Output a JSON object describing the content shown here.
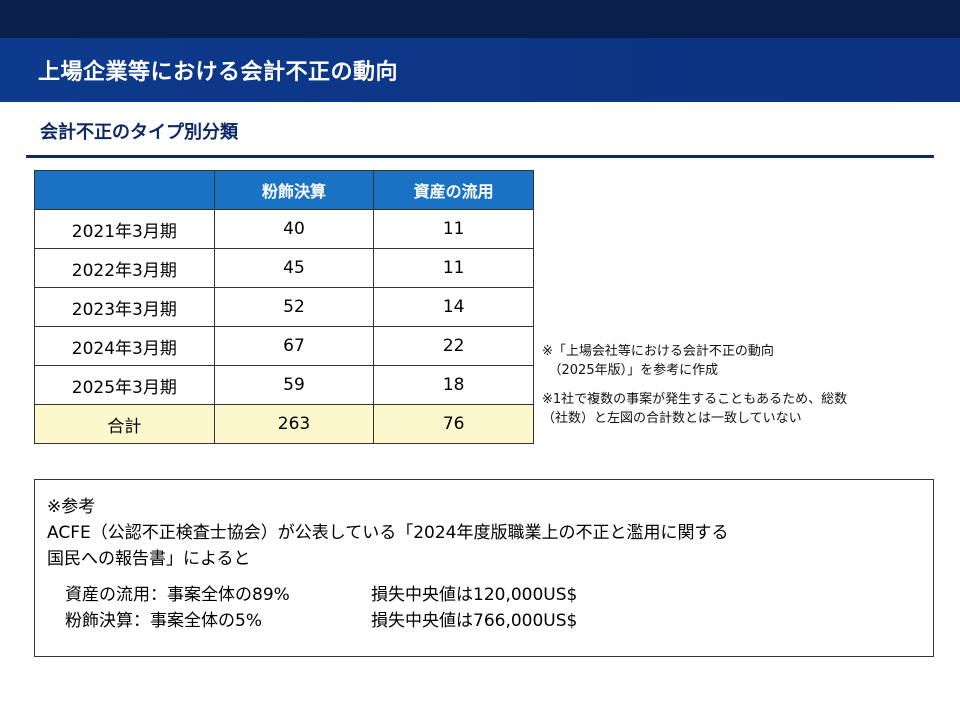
{
  "header": {
    "title": "上場企業等における会計不正の動向"
  },
  "section": {
    "title": "会計不正のタイプ別分類"
  },
  "table": {
    "headers": [
      "",
      "粉飾決算",
      "資産の流用"
    ],
    "rows": [
      [
        "2021年3月期",
        "40",
        "11"
      ],
      [
        "2022年3月期",
        "45",
        "11"
      ],
      [
        "2023年3月期",
        "52",
        "14"
      ],
      [
        "2024年3月期",
        "67",
        "22"
      ],
      [
        "2025年3月期",
        "59",
        "18"
      ]
    ],
    "total": [
      "合計",
      "263",
      "76"
    ],
    "header_color": "#1a72c4",
    "total_color": "#fdf8cc"
  },
  "notes": [
    "※「上場会社等における会計不正の動向\n　（2025年版）」を参考に作成",
    "※1社で複数の事案が発生することもあるため、総数\n（社数）と左図の合計数とは一致していない"
  ],
  "reference": {
    "heading": "※参考",
    "line1": "ACFE（公認不正検査士協会）が公表している「2024年度版職業上の不正と濫用に関する",
    "line2": "国民への報告書」によると",
    "stats": [
      {
        "label": "資産の流用：事案全体の89%",
        "value": "損失中央値は120,000US$"
      },
      {
        "label": "粉飾決算：事案全体の5%",
        "value": "損失中央値は766,000US$"
      }
    ]
  }
}
